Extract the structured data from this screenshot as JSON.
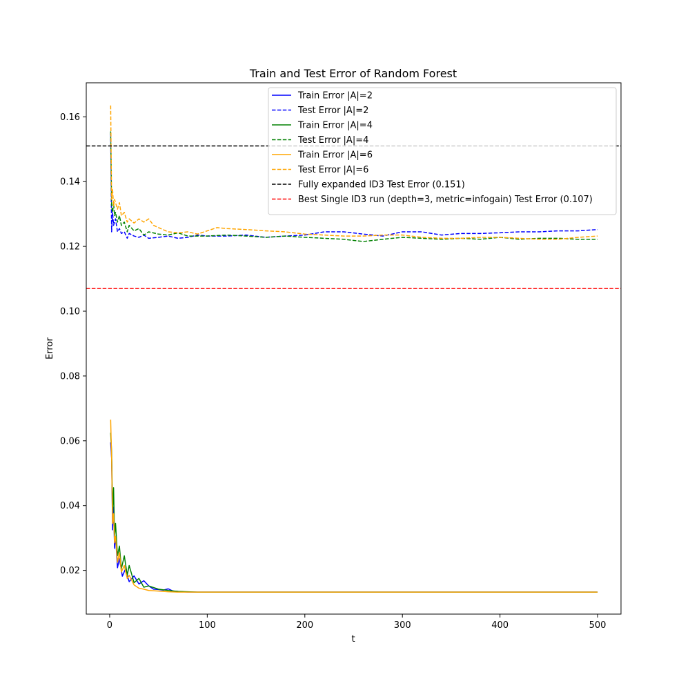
{
  "chart_data": {
    "type": "line",
    "title": "Train and Test Error of Random Forest",
    "xlabel": "t",
    "ylabel": "Error",
    "xlim": [
      -24,
      524
    ],
    "ylim": [
      0.0065,
      0.1705
    ],
    "xticks": [
      0,
      100,
      200,
      300,
      400,
      500
    ],
    "xtick_labels": [
      "0",
      "100",
      "200",
      "300",
      "400",
      "500"
    ],
    "yticks": [
      0.02,
      0.04,
      0.06,
      0.08,
      0.1,
      0.12,
      0.14,
      0.16
    ],
    "ytick_labels": [
      "0.02",
      "0.04",
      "0.06",
      "0.08",
      "0.10",
      "0.12",
      "0.14",
      "0.16"
    ],
    "grid": false,
    "legend_position": "top-right",
    "series": [
      {
        "name": "Train Error |A|=2",
        "color": "#0000ff",
        "style": "solid",
        "x": [
          1,
          2,
          3,
          4,
          5,
          6,
          8,
          10,
          13,
          16,
          20,
          25,
          30,
          35,
          40,
          45,
          50,
          55,
          60,
          65,
          70,
          80,
          90,
          100,
          150,
          200,
          300,
          400,
          500
        ],
        "y": [
          0.0595,
          0.0545,
          0.0325,
          0.0395,
          0.0268,
          0.0305,
          0.0208,
          0.0236,
          0.0182,
          0.0203,
          0.0165,
          0.0183,
          0.0158,
          0.0168,
          0.0152,
          0.0142,
          0.0141,
          0.0139,
          0.0143,
          0.0136,
          0.0135,
          0.0133,
          0.0133,
          0.0133,
          0.0133,
          0.0133,
          0.0133,
          0.0133,
          0.0133
        ]
      },
      {
        "name": "Test Error |A|=2",
        "color": "#0000ff",
        "style": "dashed",
        "x": [
          1,
          2,
          3,
          4,
          5,
          6,
          8,
          10,
          12,
          15,
          18,
          20,
          25,
          30,
          35,
          40,
          50,
          60,
          70,
          80,
          90,
          100,
          120,
          140,
          160,
          180,
          200,
          220,
          240,
          260,
          280,
          300,
          320,
          340,
          360,
          380,
          400,
          420,
          440,
          460,
          480,
          500
        ],
        "y": [
          0.155,
          0.1245,
          0.1305,
          0.1265,
          0.1275,
          0.1285,
          0.1245,
          0.1255,
          0.124,
          0.1245,
          0.1225,
          0.124,
          0.1232,
          0.1228,
          0.1235,
          0.1225,
          0.1228,
          0.1232,
          0.1225,
          0.1228,
          0.1235,
          0.1232,
          0.1232,
          0.1235,
          0.1228,
          0.1232,
          0.1235,
          0.1245,
          0.1245,
          0.1238,
          0.1232,
          0.1245,
          0.1245,
          0.1235,
          0.124,
          0.124,
          0.1242,
          0.1245,
          0.1245,
          0.1248,
          0.1248,
          0.1252
        ]
      },
      {
        "name": "Train Error |A|=4",
        "color": "#008000",
        "style": "solid",
        "x": [
          1,
          2,
          3,
          4,
          5,
          6,
          8,
          10,
          12,
          15,
          18,
          20,
          25,
          30,
          35,
          40,
          50,
          60,
          70,
          80,
          90,
          100,
          200,
          300,
          400,
          500
        ],
        "y": [
          0.0625,
          0.0565,
          0.0385,
          0.0455,
          0.0305,
          0.0345,
          0.0245,
          0.0275,
          0.0205,
          0.0245,
          0.0185,
          0.0215,
          0.0162,
          0.0175,
          0.0148,
          0.0152,
          0.0142,
          0.0138,
          0.0135,
          0.0134,
          0.0133,
          0.0133,
          0.0133,
          0.0133,
          0.0133,
          0.0133
        ]
      },
      {
        "name": "Test Error |A|=4",
        "color": "#008000",
        "style": "dashed",
        "x": [
          1,
          2,
          3,
          4,
          5,
          6,
          8,
          10,
          12,
          15,
          18,
          20,
          25,
          30,
          35,
          40,
          50,
          60,
          70,
          80,
          100,
          120,
          140,
          160,
          180,
          200,
          220,
          240,
          260,
          280,
          300,
          320,
          340,
          360,
          380,
          400,
          420,
          440,
          460,
          480,
          500
        ],
        "y": [
          0.1555,
          0.1325,
          0.1305,
          0.1335,
          0.1295,
          0.1305,
          0.1275,
          0.1295,
          0.1265,
          0.1275,
          0.1245,
          0.1265,
          0.1248,
          0.1255,
          0.1235,
          0.1245,
          0.1238,
          0.1235,
          0.1242,
          0.1232,
          0.1232,
          0.1235,
          0.1232,
          0.1228,
          0.1232,
          0.1228,
          0.1225,
          0.1222,
          0.1215,
          0.1222,
          0.1228,
          0.1225,
          0.1222,
          0.1225,
          0.1222,
          0.1228,
          0.1222,
          0.1225,
          0.1225,
          0.1222,
          0.1222
        ]
      },
      {
        "name": "Train Error |A|=6",
        "color": "#ffa500",
        "style": "solid",
        "x": [
          1,
          2,
          3,
          4,
          5,
          6,
          8,
          10,
          12,
          15,
          18,
          20,
          25,
          30,
          35,
          40,
          50,
          60,
          70,
          80,
          90,
          100,
          200,
          300,
          400,
          500
        ],
        "y": [
          0.0665,
          0.0545,
          0.0345,
          0.0375,
          0.0285,
          0.0305,
          0.0225,
          0.0255,
          0.0195,
          0.0215,
          0.0175,
          0.0185,
          0.0155,
          0.0145,
          0.0142,
          0.0138,
          0.0136,
          0.0134,
          0.0133,
          0.0133,
          0.0133,
          0.0133,
          0.0133,
          0.0133,
          0.0133,
          0.0133
        ]
      },
      {
        "name": "Test Error |A|=6",
        "color": "#ffa500",
        "style": "dashed",
        "x": [
          1,
          2,
          3,
          4,
          5,
          6,
          8,
          10,
          12,
          15,
          18,
          20,
          25,
          30,
          35,
          40,
          45,
          50,
          60,
          70,
          80,
          90,
          100,
          110,
          120,
          140,
          160,
          180,
          200,
          220,
          240,
          260,
          280,
          300,
          320,
          340,
          360,
          380,
          400,
          420,
          440,
          460,
          480,
          500
        ],
        "y": [
          0.1635,
          0.1345,
          0.1375,
          0.1325,
          0.1345,
          0.1335,
          0.1315,
          0.1335,
          0.1295,
          0.1305,
          0.1275,
          0.1285,
          0.1272,
          0.1285,
          0.1275,
          0.1285,
          0.1265,
          0.1258,
          0.1245,
          0.1242,
          0.1245,
          0.1238,
          0.1248,
          0.1258,
          0.1255,
          0.1252,
          0.1248,
          0.1245,
          0.1238,
          0.1235,
          0.1232,
          0.1232,
          0.1235,
          0.1235,
          0.1228,
          0.1225,
          0.1225,
          0.1228,
          0.1228,
          0.1225,
          0.1222,
          0.1222,
          0.1228,
          0.1232
        ]
      }
    ],
    "hlines": [
      {
        "name": "Fully expanded ID3 Test Error (0.151)",
        "y": 0.151,
        "color": "#000000",
        "style": "dashed"
      },
      {
        "name": "Best Single ID3 run (depth=3, metric=infogain) Test Error (0.107)",
        "y": 0.107,
        "color": "#ff0000",
        "style": "dashed"
      }
    ]
  }
}
